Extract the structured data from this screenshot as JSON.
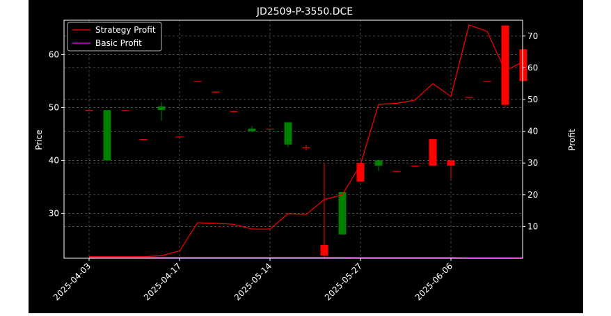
{
  "chart_data": {
    "type": "candlestick",
    "title": "JD2509-P-3550.DCE",
    "ylabel_left": "Price",
    "ylabel_right": "Profit",
    "xlabel": "",
    "ylim_left": [
      21.5,
      66.5
    ],
    "ylim_right": [
      0,
      75
    ],
    "yticks_left": [
      "30",
      "40",
      "50",
      "60"
    ],
    "yticks_right": [
      "10",
      "20",
      "30",
      "40",
      "50",
      "60",
      "70"
    ],
    "x_tick_labels": [
      "2025-04-03",
      "2025-04-17",
      "2025-05-14",
      "2025-05-27",
      "2025-06-06"
    ],
    "x_tick_indices": [
      0,
      5,
      10,
      15,
      20
    ],
    "grid": true,
    "legend_position": "top-left",
    "colors": {
      "up": "#ff0000",
      "down": "#008000",
      "strategy": "#ff0000",
      "basic": "#ff00ff",
      "grid": "#666666"
    },
    "candles": [
      {
        "open": 49.5,
        "high": 49.5,
        "low": 49.5,
        "close": 49.5
      },
      {
        "open": 49.5,
        "high": 49.5,
        "low": 40.0,
        "close": 40.0
      },
      {
        "open": 49.5,
        "high": 49.5,
        "low": 49.5,
        "close": 49.5
      },
      {
        "open": 44.0,
        "high": 44.0,
        "low": 44.0,
        "close": 44.0
      },
      {
        "open": 50.2,
        "high": 51.0,
        "low": 47.5,
        "close": 49.5
      },
      {
        "open": 44.5,
        "high": 44.5,
        "low": 44.5,
        "close": 44.5
      },
      {
        "open": 55.0,
        "high": 55.0,
        "low": 55.0,
        "close": 55.0
      },
      {
        "open": 53.0,
        "high": 53.0,
        "low": 53.0,
        "close": 53.0
      },
      {
        "open": 49.3,
        "high": 49.3,
        "low": 49.3,
        "close": 49.3
      },
      {
        "open": 46.0,
        "high": 46.5,
        "low": 45.3,
        "close": 45.5
      },
      {
        "open": 46.0,
        "high": 46.0,
        "low": 46.0,
        "close": 46.0
      },
      {
        "open": 47.2,
        "high": 47.2,
        "low": 42.5,
        "close": 43.0
      },
      {
        "open": 42.5,
        "high": 43.0,
        "low": 41.8,
        "close": 42.5
      },
      {
        "open": 22.0,
        "high": 39.5,
        "low": 21.5,
        "close": 24.0
      },
      {
        "open": 34.0,
        "high": 34.0,
        "low": 26.0,
        "close": 26.0
      },
      {
        "open": 36.0,
        "high": 39.5,
        "low": 36.0,
        "close": 39.5
      },
      {
        "open": 40.0,
        "high": 40.0,
        "low": 38.0,
        "close": 39.0
      },
      {
        "open": 38.0,
        "high": 38.0,
        "low": 38.0,
        "close": 38.0
      },
      {
        "open": 39.0,
        "high": 39.0,
        "low": 39.0,
        "close": 39.0
      },
      {
        "open": 39.0,
        "high": 44.0,
        "low": 39.0,
        "close": 44.0
      },
      {
        "open": 39.0,
        "high": 40.0,
        "low": 36.5,
        "close": 40.0
      },
      {
        "open": 52.0,
        "high": 52.0,
        "low": 52.0,
        "close": 52.0
      },
      {
        "open": 55.0,
        "high": 55.0,
        "low": 55.0,
        "close": 55.0
      },
      {
        "open": 50.5,
        "high": 65.5,
        "low": 50.0,
        "close": 65.5
      },
      {
        "open": 55.0,
        "high": 61.0,
        "low": 55.0,
        "close": 61.0
      }
    ],
    "series": [
      {
        "name": "Strategy Profit",
        "values": [
          0.5,
          0.5,
          0.5,
          0.5,
          0.8,
          2.3,
          11.2,
          11.0,
          10.7,
          9.2,
          9.2,
          14.0,
          13.8,
          18.5,
          20.0,
          29.5,
          48.5,
          48.8,
          49.8,
          55.0,
          51.0,
          73.5,
          71.5,
          59.0,
          62.0
        ]
      },
      {
        "name": "Basic Profit",
        "values": [
          0.3,
          0.3,
          0.3,
          0.3,
          0.3,
          0.3,
          0.3,
          0.3,
          0.3,
          0.3,
          0.3,
          0.3,
          0.3,
          0.3,
          0.3,
          0.2,
          0.2,
          0.2,
          0.2,
          0.2,
          0.2,
          0.1,
          0.1,
          0.1,
          0.1
        ]
      }
    ]
  }
}
